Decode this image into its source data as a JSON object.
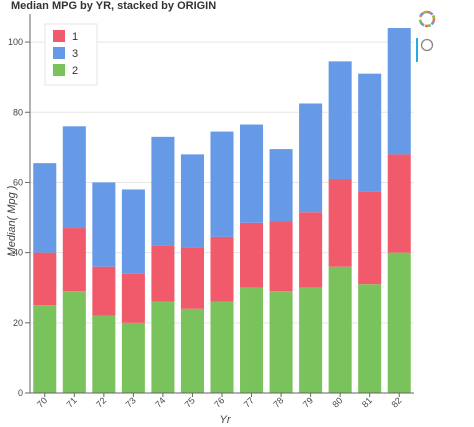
{
  "chart_data": {
    "type": "bar",
    "stacked": true,
    "title": "Median MPG by YR, stacked by ORIGIN",
    "xlabel": "Yr",
    "ylabel": "Median( Mpg )",
    "categories": [
      "70",
      "71",
      "72",
      "73",
      "74",
      "75",
      "76",
      "77",
      "78",
      "79",
      "80",
      "81",
      "82"
    ],
    "ylim": [
      0,
      108
    ],
    "yticks": [
      0,
      20,
      40,
      60,
      80,
      100
    ],
    "series": [
      {
        "name": "1",
        "color": "#f15a6b",
        "values": [
          15,
          18,
          14,
          14,
          16,
          17.5,
          18.5,
          18.5,
          20,
          21.5,
          25,
          26.5,
          28
        ]
      },
      {
        "name": "3",
        "color": "#6699e6",
        "values": [
          25.5,
          29,
          24,
          24,
          31,
          26.5,
          30,
          28,
          20.5,
          31,
          33.5,
          33.5,
          36
        ]
      },
      {
        "name": "2",
        "color": "#7ac35c",
        "values": [
          25,
          29,
          22,
          20,
          26,
          24,
          26,
          30,
          29,
          30,
          36,
          31,
          40
        ]
      }
    ],
    "stack_order": [
      "2",
      "1",
      "3"
    ],
    "legend": {
      "position": "top-left",
      "order": [
        "1",
        "3",
        "2"
      ]
    },
    "grid": true
  },
  "toolbar": {
    "logo_icon": "bokeh-logo-icon",
    "reset_icon": "reset-icon"
  }
}
